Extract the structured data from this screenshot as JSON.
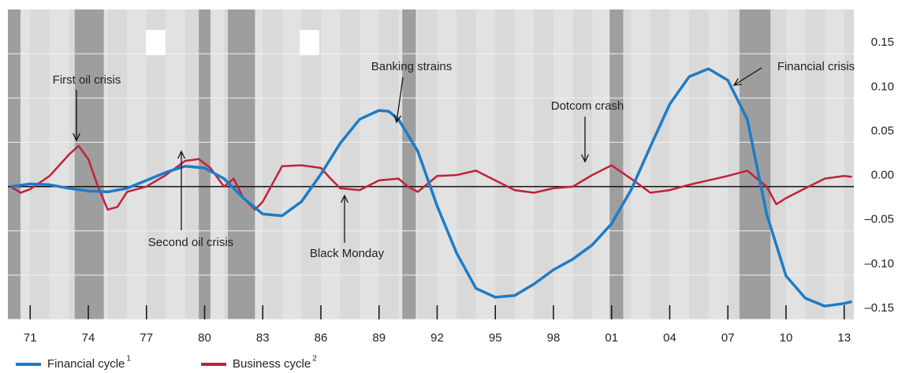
{
  "chart_data": {
    "type": "line",
    "xlim": [
      1969.85,
      2013.5
    ],
    "ylim": [
      -0.15,
      0.2
    ],
    "yticks": [
      {
        "value": 0.15,
        "label": "0.15"
      },
      {
        "value": 0.1,
        "label": "0.10"
      },
      {
        "value": 0.05,
        "label": "0.05"
      },
      {
        "value": 0,
        "label": "0.00"
      },
      {
        "value": -0.05,
        "label": "–0.05"
      },
      {
        "value": -0.1,
        "label": "–0.10"
      },
      {
        "value": -0.15,
        "label": "–0.15"
      }
    ],
    "xticks": [
      {
        "value": 1971,
        "label": "71"
      },
      {
        "value": 1974,
        "label": "74"
      },
      {
        "value": 1977,
        "label": "77"
      },
      {
        "value": 1980,
        "label": "80"
      },
      {
        "value": 1983,
        "label": "83"
      },
      {
        "value": 1986,
        "label": "86"
      },
      {
        "value": 1989,
        "label": "89"
      },
      {
        "value": 1992,
        "label": "92"
      },
      {
        "value": 1995,
        "label": "95"
      },
      {
        "value": 1998,
        "label": "98"
      },
      {
        "value": 2001,
        "label": "01"
      },
      {
        "value": 2004,
        "label": "04"
      },
      {
        "value": 2007,
        "label": "07"
      },
      {
        "value": 2010,
        "label": "10"
      },
      {
        "value": 2013,
        "label": "13"
      }
    ],
    "grid": true,
    "shaded_periods": [
      [
        1969.85,
        1970.5
      ],
      [
        1973.3,
        1974.8
      ],
      [
        1979.7,
        1980.3
      ],
      [
        1981.2,
        1982.6
      ],
      [
        1990.2,
        1990.9
      ],
      [
        2000.9,
        2001.6
      ],
      [
        2007.6,
        2009.2
      ]
    ],
    "annotations": [
      "First oil crisis",
      "Banking strains",
      "Dotcom crash",
      "Financial crisis",
      "Second oil crisis",
      "Black Monday"
    ],
    "series": [
      {
        "name": "Financial cycle",
        "note": "1",
        "color": "#1c7cc8",
        "x": [
          1970,
          1971,
          1972,
          1973,
          1974,
          1975,
          1976,
          1977,
          1978,
          1979,
          1980,
          1981,
          1982,
          1983,
          1984,
          1985,
          1986,
          1987,
          1988,
          1989,
          1989.5,
          1990,
          1991,
          1992,
          1993,
          1994,
          1995,
          1996,
          1997,
          1998,
          1999,
          2000,
          2001,
          2002,
          2003,
          2004,
          2005,
          2006,
          2007,
          2008,
          2009,
          2010,
          2011,
          2012,
          2013,
          2013.4
        ],
        "values": [
          0,
          0.003,
          0.002,
          -0.002,
          -0.005,
          -0.006,
          -0.002,
          0.007,
          0.016,
          0.023,
          0.021,
          0.009,
          -0.013,
          -0.031,
          -0.033,
          -0.017,
          0.014,
          0.049,
          0.076,
          0.086,
          0.085,
          0.076,
          0.04,
          -0.022,
          -0.075,
          -0.115,
          -0.125,
          -0.123,
          -0.11,
          -0.094,
          -0.082,
          -0.066,
          -0.042,
          -0.004,
          0.045,
          0.093,
          0.124,
          0.133,
          0.12,
          0.076,
          -0.031,
          -0.101,
          -0.126,
          -0.135,
          -0.132,
          -0.13
        ]
      },
      {
        "name": "Business cycle",
        "note": "2",
        "color": "#c0223b",
        "x": [
          1970,
          1970.5,
          1971,
          1972,
          1973,
          1973.5,
          1974,
          1974.5,
          1975,
          1975.5,
          1976,
          1977,
          1978,
          1979,
          1979.7,
          1980.3,
          1981,
          1981.5,
          1982,
          1982.6,
          1983,
          1984,
          1985,
          1986,
          1986.5,
          1987,
          1988,
          1989,
          1990,
          1990.5,
          1991,
          1992,
          1993,
          1994,
          1995,
          1996,
          1997,
          1998,
          1999,
          2000,
          2001,
          2002,
          2003,
          2004,
          2005,
          2006,
          2007,
          2008,
          2009,
          2009.5,
          2010,
          2011,
          2012,
          2013,
          2013.4
        ],
        "values": [
          0,
          -0.007,
          -0.003,
          0.012,
          0.036,
          0.046,
          0.031,
          0,
          -0.026,
          -0.023,
          -0.006,
          0,
          0.013,
          0.029,
          0.031,
          0.021,
          0,
          0.009,
          -0.013,
          -0.026,
          -0.017,
          0.023,
          0.024,
          0.021,
          0.009,
          -0.002,
          -0.004,
          0.007,
          0.009,
          0,
          -0.006,
          0.012,
          0.013,
          0.018,
          0.007,
          -0.004,
          -0.007,
          -0.002,
          0,
          0.013,
          0.024,
          0.009,
          -0.007,
          -0.004,
          0.002,
          0.007,
          0.012,
          0.018,
          0,
          -0.02,
          -0.013,
          -0.002,
          0.009,
          0.012,
          0.011
        ]
      }
    ]
  }
}
